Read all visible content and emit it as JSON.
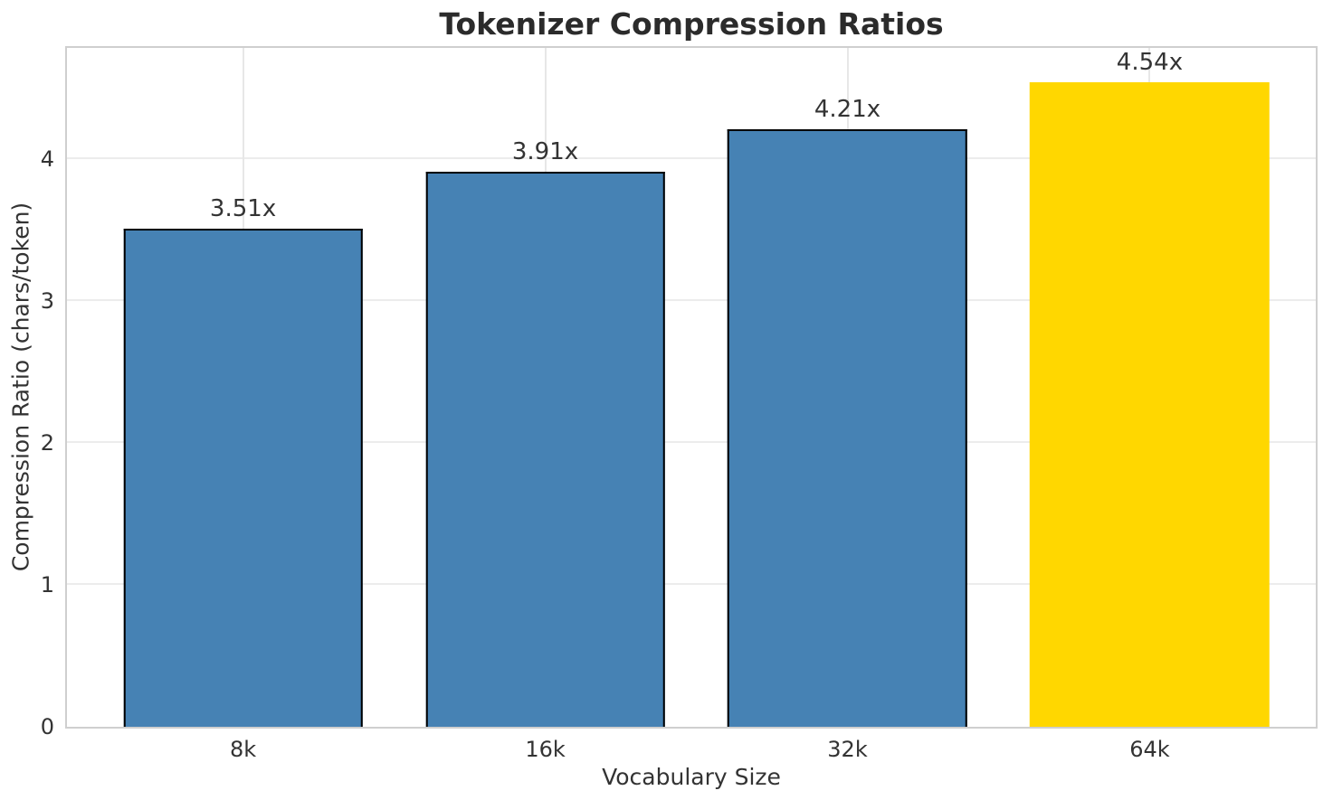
{
  "figure": {
    "title": "Tokenizer Compression Ratios"
  },
  "chart_data": {
    "type": "bar",
    "title": "Tokenizer Compression Ratios",
    "xlabel": "Vocabulary Size",
    "ylabel": "Compression Ratio (chars/token)",
    "categories": [
      "8k",
      "16k",
      "32k",
      "64k"
    ],
    "values": [
      3.51,
      3.91,
      4.21,
      4.54
    ],
    "bar_labels": [
      "3.51x",
      "3.91x",
      "4.21x",
      "4.54x"
    ],
    "bar_colors": [
      "#4682B4",
      "#4682B4",
      "#4682B4",
      "#FFD700"
    ],
    "bar_edge_colors": [
      "#000000",
      "#000000",
      "#000000",
      "none"
    ],
    "highlight_index": 3,
    "yticks": [
      0,
      1,
      2,
      3,
      4
    ],
    "ylim": [
      0,
      4.78
    ],
    "grid": true,
    "legend_position": "none",
    "colors": {
      "bar_default": "#4682B4",
      "bar_highlight": "#FFD700",
      "grid": "#ececec",
      "spine": "#cfcfcf",
      "text": "#333333",
      "title_text": "#2b2b2b"
    }
  }
}
